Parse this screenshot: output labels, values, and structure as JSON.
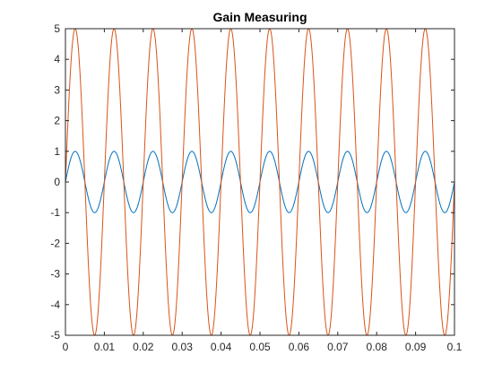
{
  "chart_data": {
    "type": "line",
    "title": "Gain Measuring",
    "xlabel": "",
    "ylabel": "",
    "xlim": [
      0,
      0.1
    ],
    "ylim": [
      -5,
      5
    ],
    "xticks": [
      0,
      0.01,
      0.02,
      0.03,
      0.04,
      0.05,
      0.06,
      0.07,
      0.08,
      0.09,
      0.1
    ],
    "xtick_labels": [
      "0",
      "0.01",
      "0.02",
      "0.03",
      "0.04",
      "0.05",
      "0.06",
      "0.07",
      "0.08",
      "0.09",
      "0.1"
    ],
    "yticks": [
      -5,
      -4,
      -3,
      -2,
      -1,
      0,
      1,
      2,
      3,
      4,
      5
    ],
    "ytick_labels": [
      "-5",
      "-4",
      "-3",
      "-2",
      "-1",
      "0",
      "1",
      "2",
      "3",
      "4",
      "5"
    ],
    "grid": false,
    "series": [
      {
        "frequency_hz": 100,
        "amplitude": 1,
        "color": "#0072BD"
      },
      {
        "frequency_hz": 100,
        "amplitude": 5,
        "color": "#D95319"
      }
    ]
  }
}
